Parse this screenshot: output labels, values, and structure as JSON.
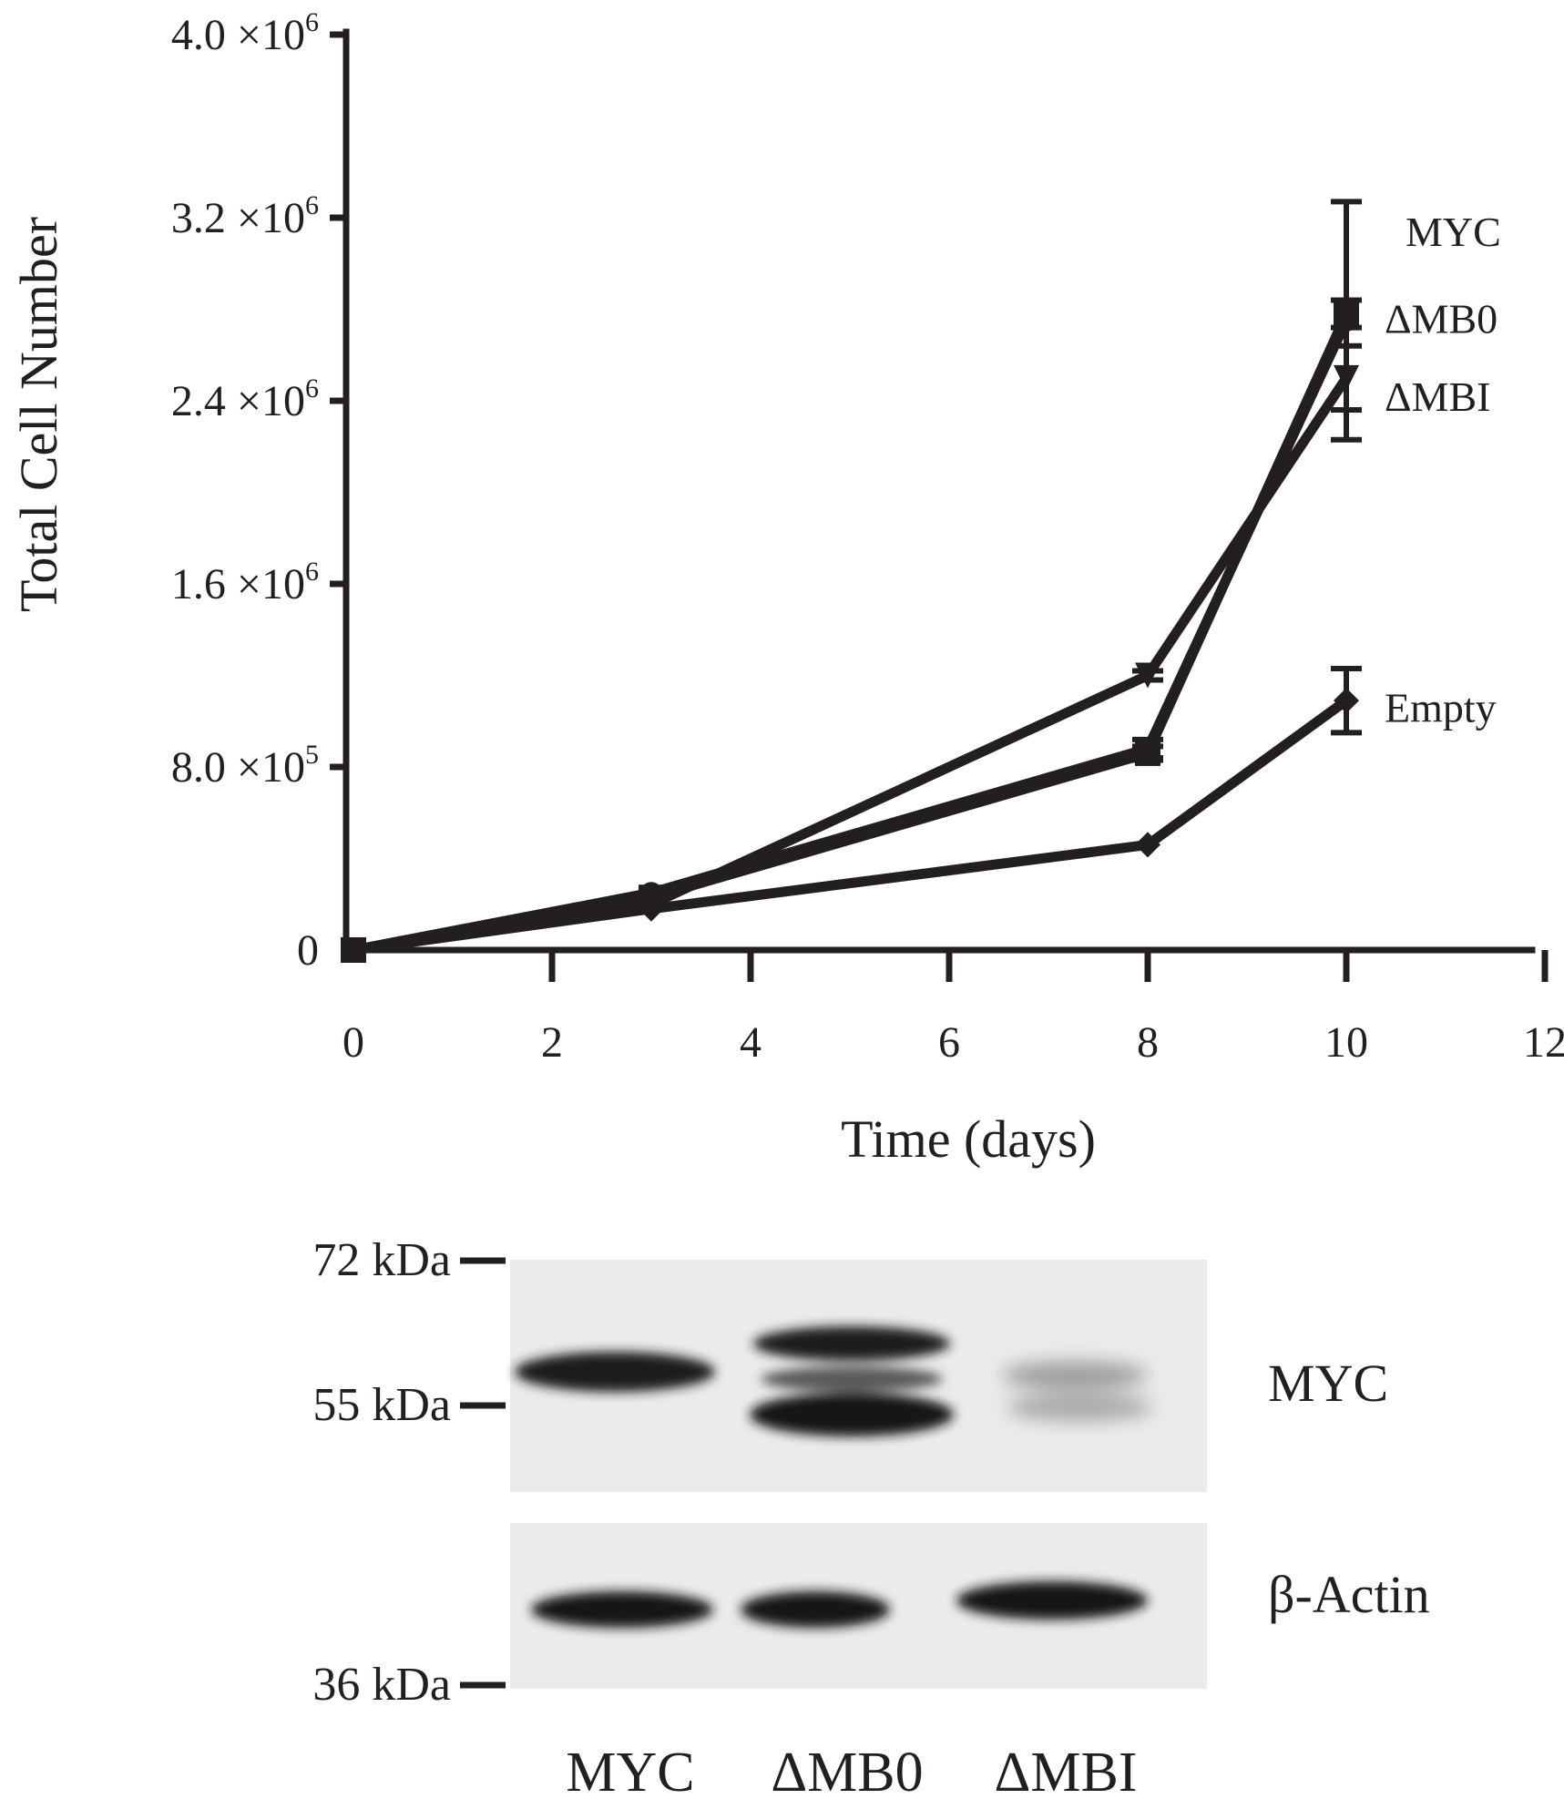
{
  "chart_data": [
    {
      "type": "line",
      "title": "",
      "xlabel": "Time (days)",
      "ylabel": "Total Cell Number",
      "xlim": [
        0,
        12
      ],
      "ylim": [
        0,
        4000000
      ],
      "x_ticks": [
        "0",
        "2",
        "4",
        "6",
        "8",
        "10",
        "12"
      ],
      "y_ticks": [
        {
          "value": 0,
          "mantissa": "0",
          "exp": ""
        },
        {
          "value": 800000,
          "mantissa": "8.0 ×10",
          "exp": "5"
        },
        {
          "value": 1600000,
          "mantissa": "1.6 ×10",
          "exp": "6"
        },
        {
          "value": 2400000,
          "mantissa": "2.4 ×10",
          "exp": "6"
        },
        {
          "value": 3200000,
          "mantissa": "3.2 ×10",
          "exp": "6"
        },
        {
          "value": 4000000,
          "mantissa": "4.0 ×10",
          "exp": "6"
        }
      ],
      "grid": false,
      "series": [
        {
          "name": "MYC",
          "marker": "circle",
          "x": [
            0,
            3,
            8,
            10
          ],
          "y": [
            0,
            250000,
            880000,
            2750000
          ],
          "err": [
            0,
            10000,
            40000,
            520000
          ]
        },
        {
          "name": "ΔMB0",
          "marker": "square",
          "x": [
            0,
            3,
            8,
            10
          ],
          "y": [
            0,
            230000,
            860000,
            2780000
          ],
          "err": [
            0,
            10000,
            30000,
            60000
          ]
        },
        {
          "name": "ΔMBI",
          "marker": "triangle-down",
          "x": [
            0,
            3,
            8,
            10
          ],
          "y": [
            0,
            200000,
            1200000,
            2500000
          ],
          "err": [
            0,
            10000,
            20000,
            140000
          ]
        },
        {
          "name": "Empty",
          "marker": "diamond",
          "x": [
            0,
            3,
            8,
            10
          ],
          "y": [
            0,
            180000,
            460000,
            1090000
          ],
          "err": [
            0,
            10000,
            10000,
            140000
          ]
        }
      ]
    }
  ],
  "blot": {
    "markers": [
      "72 kDa",
      "55 kDa",
      "36 kDa"
    ],
    "rows": [
      "MYC",
      "β-Actin"
    ],
    "lanes": [
      "MYC",
      "ΔMB0",
      "ΔMBI"
    ]
  },
  "colors": {
    "ink": "#231f20",
    "blot_bg": "#ebebeb"
  }
}
